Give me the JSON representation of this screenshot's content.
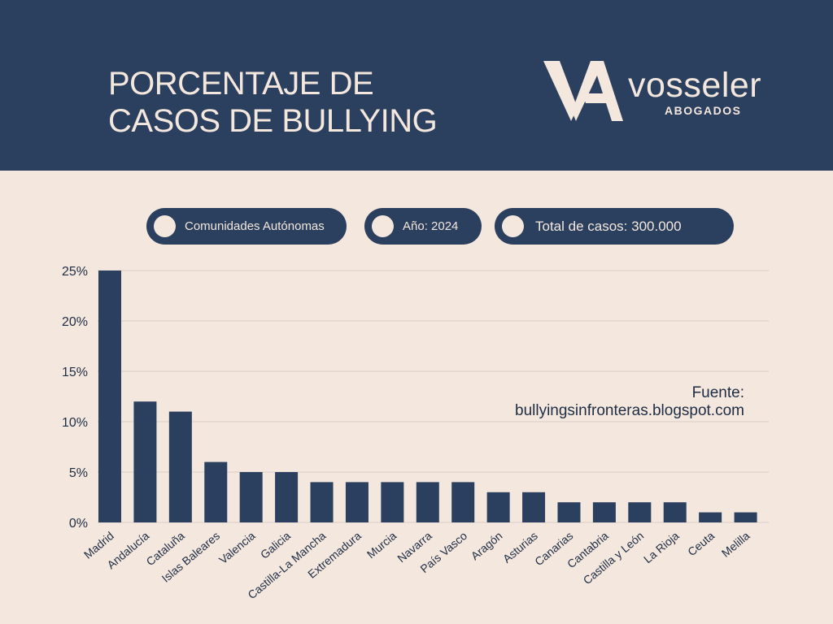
{
  "header": {
    "title_line1": "PORCENTAJE DE",
    "title_line2": "CASOS DE BULLYING",
    "brand_name": "vosseler",
    "brand_sub": "ABOGADOS",
    "logo_letters": "VA"
  },
  "pills": [
    {
      "label": "Comunidades Autónomas"
    },
    {
      "label": "Año: 2024"
    },
    {
      "label": "Total de casos: 300.000"
    }
  ],
  "source": {
    "label": "Fuente:",
    "url": "bullyingsinfronteras.blogspot.com"
  },
  "colors": {
    "navy": "#2b3f5e",
    "cream": "#f4e8de",
    "bar": "#2b3f5e",
    "grid": "#d8cdc5"
  },
  "chart_data": {
    "type": "bar",
    "categories": [
      "Madrid",
      "Andalucía",
      "Cataluña",
      "Islas Baleares",
      "Valencia",
      "Galicia",
      "Castilla-La Mancha",
      "Extremadura",
      "Murcia",
      "Navarra",
      "País Vasco",
      "Aragón",
      "Asturias",
      "Canarias",
      "Cantabria",
      "Castilla y León",
      "La Rioja",
      "Ceuta",
      "Melilla"
    ],
    "values": [
      25,
      12,
      11,
      6,
      5,
      5,
      4,
      4,
      4,
      4,
      4,
      3,
      3,
      2,
      2,
      2,
      2,
      1,
      1
    ],
    "ylim": [
      0,
      25
    ],
    "yticks": [
      0,
      5,
      10,
      15,
      20,
      25
    ],
    "ytick_labels": [
      "0%",
      "5%",
      "10%",
      "15%",
      "20%",
      "25%"
    ],
    "grid": true
  }
}
